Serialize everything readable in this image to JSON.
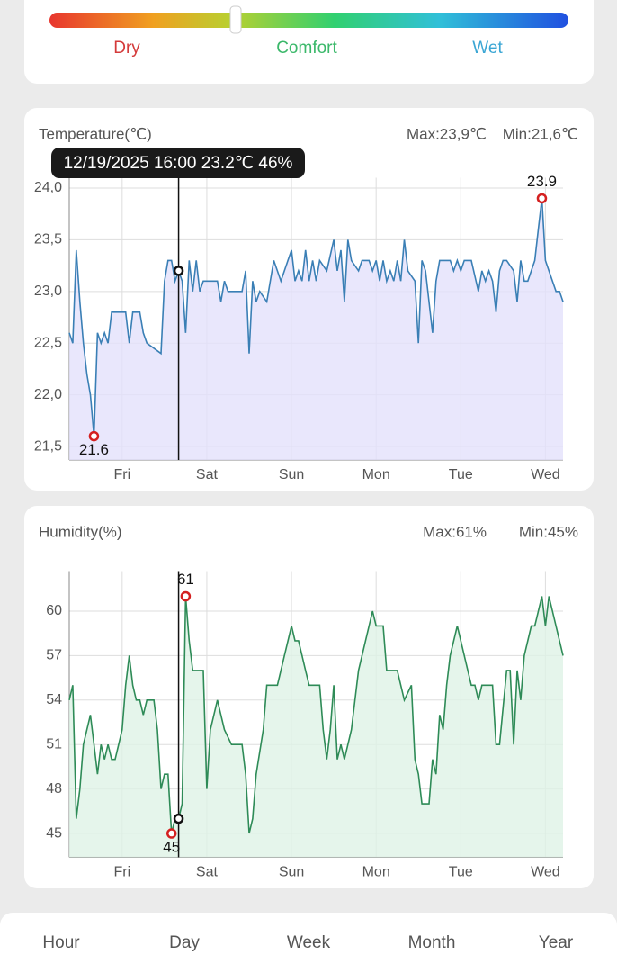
{
  "comfort_bar": {
    "labels": [
      "Dry",
      "Comfort",
      "Wet"
    ],
    "label_colors": [
      "#d43a3a",
      "#3bb86a",
      "#3ba6d4"
    ]
  },
  "chart_data": [
    {
      "type": "line",
      "title": "Temperature(℃)",
      "max_label": "Max:23,9℃",
      "min_label": "Min:21,6℃",
      "tooltip": "12/19/2025 16:00 23.2℃ 46%",
      "color": "#3a7fb5",
      "fill": "#e4e1fb",
      "grid": true,
      "x": [
        -15,
        -14,
        -13,
        -12,
        -11,
        -10,
        -9,
        -8,
        -7,
        -6,
        -5,
        -4,
        -3,
        1,
        2,
        3,
        5,
        6,
        7,
        11,
        12,
        13,
        14,
        15,
        16,
        17,
        18,
        19,
        20,
        21,
        22,
        23,
        27,
        28,
        29,
        30,
        34,
        35,
        36,
        37,
        38,
        39,
        41,
        42,
        43,
        45,
        47,
        48,
        49,
        50,
        51,
        52,
        53,
        54,
        55,
        56,
        58,
        60,
        61,
        62,
        63,
        64,
        65,
        67,
        68,
        70,
        71,
        72,
        73,
        74,
        75,
        76,
        77,
        78,
        79,
        80,
        81,
        83,
        84,
        85,
        86,
        88,
        89,
        90,
        93,
        94,
        95,
        96,
        97,
        99,
        101,
        102,
        103,
        104,
        105,
        106,
        107,
        108,
        109,
        111,
        112,
        113,
        114,
        115,
        116,
        117,
        118,
        119,
        120,
        121,
        123,
        124,
        125
      ],
      "values": [
        22.6,
        22.5,
        23.4,
        22.9,
        22.5,
        22.2,
        22.0,
        21.6,
        22.6,
        22.5,
        22.6,
        22.5,
        22.8,
        22.8,
        22.5,
        22.8,
        22.8,
        22.6,
        22.5,
        22.4,
        23.1,
        23.3,
        23.3,
        23.1,
        23.2,
        23.1,
        22.6,
        23.3,
        23.0,
        23.3,
        23.0,
        23.1,
        23.1,
        22.9,
        23.1,
        23.0,
        23.0,
        23.2,
        22.4,
        23.1,
        22.9,
        23.0,
        22.9,
        23.1,
        23.3,
        23.1,
        23.3,
        23.4,
        23.1,
        23.2,
        23.1,
        23.4,
        23.1,
        23.3,
        23.1,
        23.3,
        23.2,
        23.5,
        23.2,
        23.4,
        22.9,
        23.5,
        23.3,
        23.2,
        23.3,
        23.3,
        23.2,
        23.3,
        23.1,
        23.3,
        23.1,
        23.2,
        23.1,
        23.3,
        23.1,
        23.5,
        23.2,
        23.1,
        22.5,
        23.3,
        23.2,
        22.6,
        23.1,
        23.3,
        23.3,
        23.2,
        23.3,
        23.2,
        23.3,
        23.3,
        23.0,
        23.2,
        23.1,
        23.2,
        23.1,
        22.8,
        23.2,
        23.3,
        23.3,
        23.2,
        22.9,
        23.3,
        23.1,
        23.1,
        23.2,
        23.3,
        23.6,
        23.9,
        23.3,
        23.2,
        23.0,
        23.0,
        22.9
      ],
      "min_point": {
        "x": -8,
        "value": 21.6
      },
      "max_point": {
        "x": 119,
        "value": 23.9
      },
      "cursor": {
        "x": 16,
        "value": 23.2
      },
      "xlim": [
        -15,
        125
      ],
      "ylim": [
        21.37,
        24.1
      ],
      "xticks": [
        {
          "value": 0,
          "label": "Fri"
        },
        {
          "value": 24,
          "label": "Sat"
        },
        {
          "value": 48,
          "label": "Sun"
        },
        {
          "value": 72,
          "label": "Mon"
        },
        {
          "value": 96,
          "label": "Tue"
        },
        {
          "value": 120,
          "label": "Wed"
        }
      ],
      "yticks": [
        {
          "value": 21.5,
          "label": "21,5"
        },
        {
          "value": 22,
          "label": "22,0"
        },
        {
          "value": 22.5,
          "label": "22,5"
        },
        {
          "value": 23,
          "label": "23,0"
        },
        {
          "value": 23.5,
          "label": "23,5"
        },
        {
          "value": 24,
          "label": "24,0"
        }
      ]
    },
    {
      "type": "line",
      "title": "Humidity(%)",
      "max_label": "Max:61%",
      "min_label": "Min:45%",
      "color": "#2e8b57",
      "fill": "#dff3e6",
      "grid": true,
      "x": [
        -15,
        -14,
        -13,
        -12,
        -11,
        -10,
        -9,
        -8,
        -7,
        -6,
        -5,
        -4,
        -3,
        -2,
        -1,
        0,
        1,
        2,
        3,
        4,
        5,
        6,
        7,
        9,
        10,
        11,
        12,
        13,
        14,
        15,
        16,
        17,
        18,
        19,
        20,
        23,
        24,
        25,
        26,
        27,
        28,
        29,
        31,
        34,
        35,
        36,
        37,
        38,
        40,
        41,
        44,
        46,
        48,
        49,
        50,
        52,
        53,
        56,
        57,
        58,
        59,
        60,
        61,
        62,
        63,
        64,
        65,
        67,
        69,
        71,
        72,
        74,
        75,
        78,
        79,
        80,
        82,
        83,
        84,
        85,
        87,
        88,
        89,
        90,
        91,
        92,
        93,
        95,
        96,
        98,
        99,
        100,
        101,
        102,
        105,
        106,
        107,
        109,
        110,
        111,
        112,
        113,
        114,
        116,
        117,
        119,
        120,
        121,
        125
      ],
      "values": [
        54,
        55,
        46,
        48,
        51,
        52,
        53,
        51,
        49,
        51,
        50,
        51,
        50,
        50,
        51,
        52,
        55,
        57,
        55,
        54,
        54,
        53,
        54,
        54,
        52,
        48,
        49,
        49,
        45,
        46,
        46,
        47,
        61,
        58,
        56,
        56,
        48,
        52,
        53,
        54,
        53,
        52,
        51,
        51,
        49,
        45,
        46,
        49,
        52,
        55,
        55,
        57,
        59,
        58,
        58,
        56,
        55,
        55,
        52,
        50,
        52,
        55,
        50,
        51,
        50,
        51,
        52,
        56,
        58,
        60,
        59,
        59,
        56,
        56,
        55,
        54,
        55,
        50,
        49,
        47,
        47,
        50,
        49,
        53,
        52,
        55,
        57,
        59,
        58,
        56,
        55,
        55,
        54,
        55,
        55,
        51,
        51,
        56,
        56,
        51,
        56,
        54,
        57,
        59,
        59,
        61,
        59,
        61,
        57
      ],
      "min_point": {
        "x": 14,
        "value": 45
      },
      "max_point": {
        "x": 18,
        "value": 61
      },
      "cursor": {
        "x": 16,
        "value": 46
      },
      "xlim": [
        -15,
        125
      ],
      "ylim": [
        43.4,
        62.7
      ],
      "xticks": [
        {
          "value": 0,
          "label": "Fri"
        },
        {
          "value": 24,
          "label": "Sat"
        },
        {
          "value": 48,
          "label": "Sun"
        },
        {
          "value": 72,
          "label": "Mon"
        },
        {
          "value": 96,
          "label": "Tue"
        },
        {
          "value": 120,
          "label": "Wed"
        }
      ],
      "yticks": [
        45,
        48,
        51,
        54,
        57,
        60
      ]
    }
  ],
  "tabs": [
    "Hour",
    "Day",
    "Week",
    "Month",
    "Year"
  ]
}
